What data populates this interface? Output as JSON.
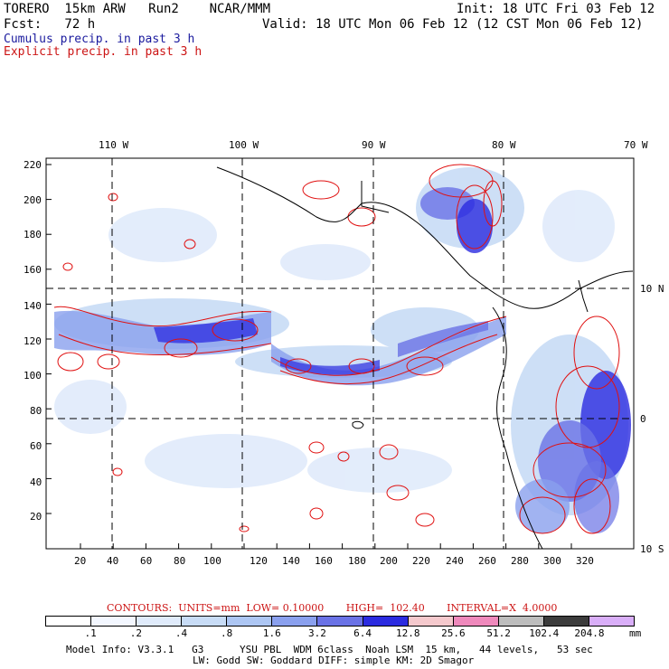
{
  "header": {
    "line1_left": "TORERO  15km ARW   Run2    NCAR/MMM",
    "line1_right": "Init: 18 UTC Fri 03 Feb 12",
    "line2_left": "Fcst:   72 h",
    "line2_right": "Valid: 18 UTC Mon 06 Feb 12 (12 CST Mon 06 Feb 12)"
  },
  "legend": {
    "cumulus": "Cumulus precip. in past 3 h",
    "explicit": "Explicit precip. in past 3 h"
  },
  "map": {
    "top_lon_labels": [
      "110 W",
      "100 W",
      "90 W",
      "80 W",
      "70 W"
    ],
    "right_lat_labels": [
      "10 N",
      "0",
      "10 S"
    ],
    "y_ticks": [
      "220",
      "200",
      "180",
      "160",
      "140",
      "120",
      "100",
      "80",
      "60",
      "40",
      "20"
    ],
    "x_ticks": [
      "20",
      "40",
      "60",
      "80",
      "100",
      "120",
      "140",
      "160",
      "180",
      "200",
      "220",
      "240",
      "260",
      "280",
      "300",
      "320"
    ]
  },
  "contour_info": "CONTOURS:  UNITS=mm  LOW= 0.10000       HIGH=  102.40       INTERVAL=X  4.0000",
  "colorbar": {
    "labels": [
      ".1",
      ".2",
      ".4",
      ".8",
      "1.6",
      "3.2",
      "6.4",
      "12.8",
      "25.6",
      "51.2",
      "102.4",
      "204.8"
    ],
    "unit": "mm",
    "colors": [
      "#ffffff",
      "#f3f7ff",
      "#e0ebfb",
      "#c8dcf6",
      "#adc6f3",
      "#8aa0ee",
      "#6a72e6",
      "#2b2be0",
      "#f5c9cd",
      "#ef89bc",
      "#bdbdbd",
      "#3c3c3c",
      "#d9aef8"
    ]
  },
  "footer": {
    "line1": "Model Info: V3.3.1   G3      YSU PBL  WDM 6class  Noah LSM  15 km,   44 levels,   53 sec",
    "line2": "LW: Godd SW: Goddard DIFF: simple KM: 2D Smagor"
  }
}
